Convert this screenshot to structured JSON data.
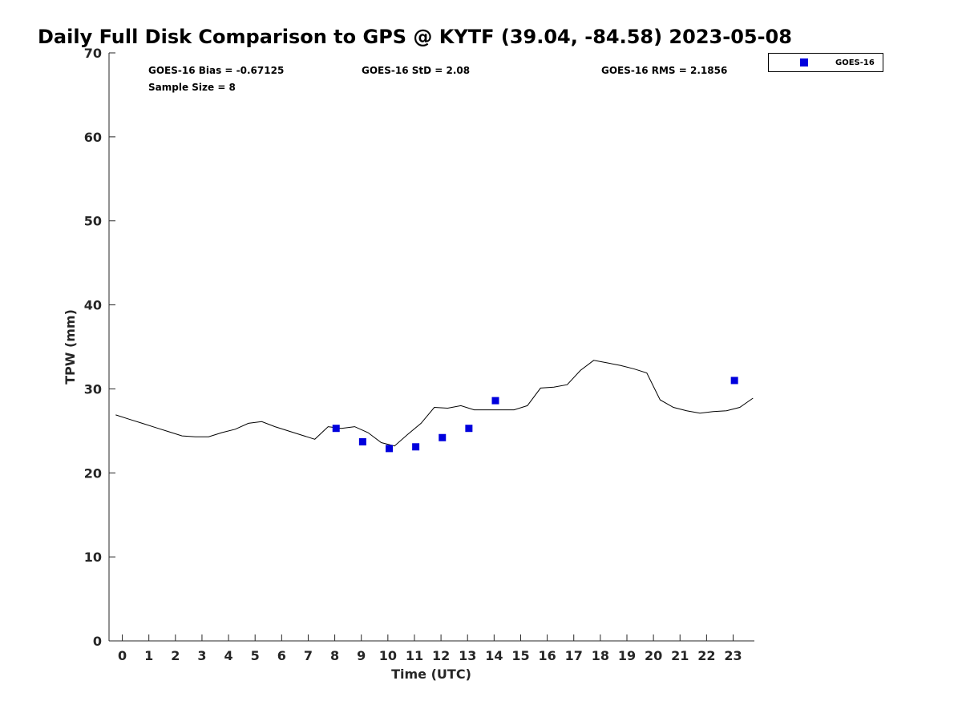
{
  "chart_data": {
    "type": "scatter",
    "title": "Daily Full Disk Comparison to GPS @ KYTF (39.04, -84.58) 2023-05-08",
    "xlabel": "Time (UTC)",
    "ylabel": "TPW (mm)",
    "xlim": [
      -0.5,
      23.8
    ],
    "ylim": [
      0,
      70
    ],
    "x_ticks": [
      0,
      1,
      2,
      3,
      4,
      5,
      6,
      7,
      8,
      9,
      10,
      11,
      12,
      13,
      14,
      15,
      16,
      17,
      18,
      19,
      20,
      21,
      22,
      23
    ],
    "y_ticks": [
      0,
      10,
      20,
      30,
      40,
      50,
      60,
      70
    ],
    "grid": false,
    "legend_position": "top-right, outside plot",
    "stats": {
      "bias": "GOES-16 Bias = -0.67125",
      "std": "GOES-16 StD = 2.08",
      "rms": "GOES-16 RMS = 2.1856",
      "sample_size": "Sample Size = 8"
    },
    "series": [
      {
        "name": "GOES-16",
        "kind": "scatter",
        "color": "#0000dd",
        "x": [
          8.05,
          9.05,
          10.05,
          11.05,
          12.05,
          13.05,
          14.05,
          23.05
        ],
        "y": [
          25.3,
          23.7,
          22.9,
          23.1,
          24.2,
          25.3,
          28.6,
          31.0
        ]
      },
      {
        "kind": "line",
        "color": "#000000",
        "x": [
          -0.25,
          0.25,
          0.75,
          1.25,
          1.75,
          2.25,
          2.75,
          3.25,
          3.75,
          4.25,
          4.75,
          5.25,
          5.75,
          6.25,
          6.75,
          7.25,
          7.75,
          8.25,
          8.75,
          9.25,
          9.75,
          10.25,
          10.75,
          11.25,
          11.75,
          12.25,
          12.75,
          13.25,
          13.75,
          14.25,
          14.75,
          15.25,
          15.75,
          16.25,
          16.75,
          17.25,
          17.75,
          18.25,
          18.75,
          19.25,
          19.75,
          20.25,
          20.75,
          21.25,
          21.75,
          22.25,
          22.75,
          23.25,
          23.75
        ],
        "y": [
          26.9,
          26.4,
          25.9,
          25.4,
          24.9,
          24.4,
          24.3,
          24.3,
          24.8,
          25.2,
          25.9,
          26.1,
          25.5,
          25.0,
          24.5,
          24.0,
          25.5,
          25.3,
          25.5,
          24.8,
          23.6,
          23.2,
          24.6,
          25.9,
          27.8,
          27.7,
          28.0,
          27.5,
          27.5,
          27.5,
          27.5,
          28.0,
          30.1,
          30.2,
          30.5,
          32.2,
          33.4,
          33.1,
          32.8,
          32.4,
          31.9,
          28.7,
          27.8,
          27.4,
          27.1,
          27.3,
          27.4,
          27.8,
          28.9
        ]
      }
    ]
  }
}
